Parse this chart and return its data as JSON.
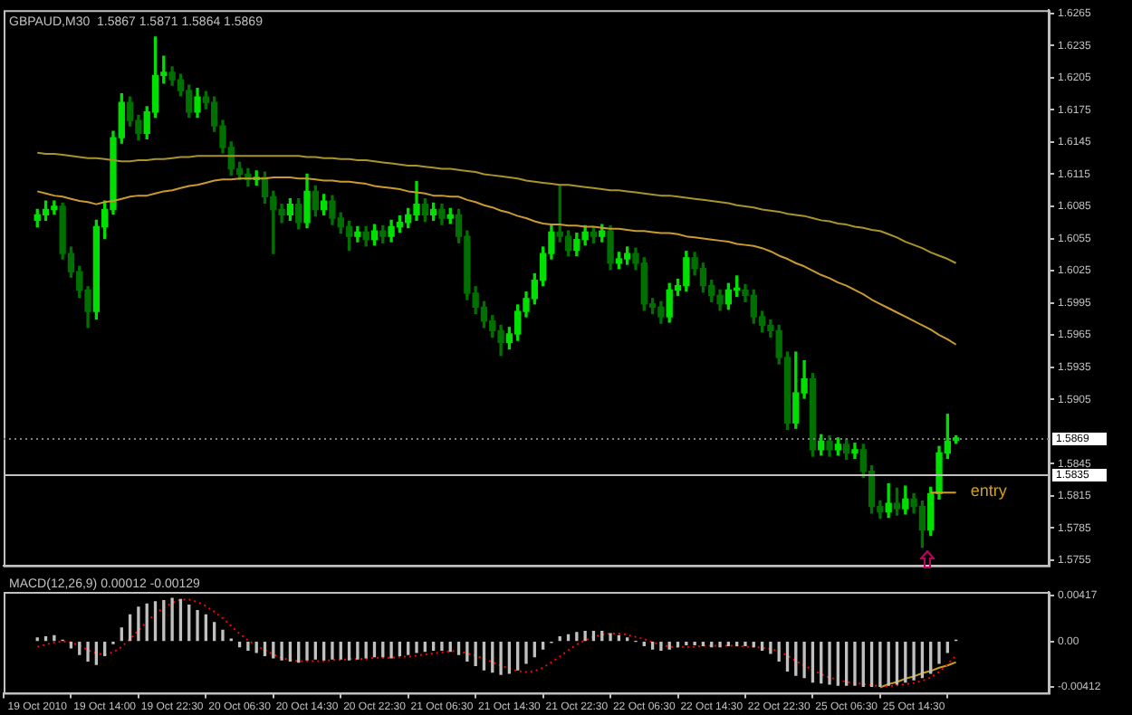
{
  "chart_data": [
    {
      "type": "candlestick",
      "title": "GBPAUD,M30  1.5867 1.5871 1.5864 1.5869",
      "tick_labels": "y",
      "colors": [
        "#00e000",
        "#00e000",
        "#00e000",
        "#007000",
        "#007000",
        "#007000",
        "#007000",
        "#00e000",
        "#00e000",
        "#00e000",
        "#00e000",
        "#007000",
        "#007000",
        "#00e000",
        "#00e000",
        "#00e000",
        "#007000",
        "#007000",
        "#007000",
        "#00e000",
        "#007000",
        "#007000",
        "#007000",
        "#007000",
        "#007000",
        "#007000",
        "#00e000",
        "#007000",
        "#007000",
        "#007000",
        "#00e000",
        "#007000",
        "#00e000",
        "#007000",
        "#00e000",
        "#007000",
        "#007000",
        "#007000",
        "#00e000",
        "#007000",
        "#00e000",
        "#007000",
        "#00e000",
        "#00e000",
        "#00e000",
        "#00e000",
        "#007000",
        "#00e000",
        "#007000",
        "#00e000",
        "#007000",
        "#007000",
        "#007000",
        "#007000",
        "#007000",
        "#007000",
        "#00e000",
        "#00e000",
        "#00e000",
        "#00e000",
        "#00e000",
        "#00e000",
        "#007000",
        "#007000",
        "#00e000",
        "#00e000",
        "#007000",
        "#00e000",
        "#007000",
        "#00e000",
        "#00e000",
        "#007000",
        "#007000",
        "#007000",
        "#007000",
        "#00e000",
        "#00e000",
        "#00e000",
        "#007000",
        "#007000",
        "#007000",
        "#007000",
        "#00e000",
        "#00e000",
        "#007000",
        "#007000",
        "#007000",
        "#007000",
        "#007000",
        "#007000",
        "#00e000",
        "#00e000",
        "#007000",
        "#00e000",
        "#007000",
        "#00e000",
        "#007000",
        "#00e000",
        "#007000",
        "#007000",
        "#007000",
        "#00e000",
        "#007000",
        "#00e000",
        "#007000",
        "#007000",
        "#00e000",
        "#00e000",
        "#00e000",
        "#00e000"
      ],
      "categories": [
        null,
        null,
        null,
        null,
        null,
        null,
        null,
        null,
        null,
        null,
        null,
        null,
        null,
        null,
        null,
        null,
        null,
        null,
        null,
        null,
        null,
        null,
        null,
        null,
        null,
        null,
        null,
        null,
        null,
        null,
        null,
        null,
        null,
        null,
        null,
        null,
        null,
        null,
        null,
        null,
        null,
        null,
        null,
        null,
        null,
        null,
        null,
        null,
        null,
        null,
        null,
        null,
        null,
        null,
        null,
        null,
        null,
        null,
        null,
        null,
        null,
        null,
        null,
        null,
        null,
        null,
        null,
        null,
        null,
        null,
        null,
        null,
        null,
        null,
        null,
        null,
        null,
        null,
        null,
        null,
        null,
        null,
        null,
        null,
        null,
        null,
        null,
        null,
        null,
        null,
        null,
        null,
        null,
        null,
        null,
        null,
        null,
        null,
        null,
        null,
        null,
        null,
        null,
        null,
        null,
        null,
        null,
        null,
        null,
        null
      ],
      "ohlc": [
        [
          1.6072,
          1.6082,
          1.6066,
          1.6077
        ],
        [
          1.6077,
          1.609,
          1.6072,
          1.6082
        ],
        [
          1.6082,
          1.609,
          1.6078,
          1.6085
        ],
        [
          1.6085,
          1.6088,
          1.6036,
          1.6041
        ],
        [
          1.6041,
          1.6047,
          1.6019,
          1.6024
        ],
        [
          1.6024,
          1.6029,
          1.6,
          1.6007
        ],
        [
          1.6007,
          1.601,
          1.5972,
          1.5987
        ],
        [
          1.5987,
          1.6072,
          1.598,
          1.6066
        ],
        [
          1.6066,
          1.609,
          1.6055,
          1.6082
        ],
        [
          1.6082,
          1.6155,
          1.6078,
          1.6149
        ],
        [
          1.6149,
          1.619,
          1.6144,
          1.6182
        ],
        [
          1.6182,
          1.6187,
          1.616,
          1.6165
        ],
        [
          1.6165,
          1.617,
          1.6147,
          1.6153
        ],
        [
          1.6153,
          1.6178,
          1.6148,
          1.6173
        ],
        [
          1.6173,
          1.6243,
          1.6168,
          1.6207
        ],
        [
          1.6207,
          1.6225,
          1.62,
          1.621
        ],
        [
          1.621,
          1.6215,
          1.6198,
          1.6203
        ],
        [
          1.6203,
          1.6208,
          1.6188,
          1.6193
        ],
        [
          1.6193,
          1.6198,
          1.6168,
          1.6173
        ],
        [
          1.6173,
          1.6195,
          1.6168,
          1.6187
        ],
        [
          1.6187,
          1.6192,
          1.6176,
          1.6182
        ],
        [
          1.6182,
          1.6187,
          1.6155,
          1.616
        ],
        [
          1.616,
          1.6165,
          1.6135,
          1.614
        ],
        [
          1.614,
          1.6145,
          1.6114,
          1.612
        ],
        [
          1.612,
          1.6126,
          1.611,
          1.6115
        ],
        [
          1.6115,
          1.612,
          1.6104,
          1.611
        ],
        [
          1.611,
          1.6118,
          1.6105,
          1.6112
        ],
        [
          1.6112,
          1.6117,
          1.6088,
          1.6094
        ],
        [
          1.6094,
          1.6099,
          1.6041,
          1.6082
        ],
        [
          1.6082,
          1.6087,
          1.607,
          1.6077
        ],
        [
          1.6077,
          1.6092,
          1.6072,
          1.6087
        ],
        [
          1.6087,
          1.6092,
          1.6064,
          1.607
        ],
        [
          1.607,
          1.6115,
          1.6065,
          1.6099
        ],
        [
          1.6099,
          1.6104,
          1.6076,
          1.6082
        ],
        [
          1.6082,
          1.6096,
          1.6077,
          1.609
        ],
        [
          1.609,
          1.6095,
          1.6068,
          1.6074
        ],
        [
          1.6074,
          1.6079,
          1.606,
          1.6066
        ],
        [
          1.6066,
          1.6071,
          1.6044,
          1.6057
        ],
        [
          1.6057,
          1.6066,
          1.6052,
          1.6061
        ],
        [
          1.6061,
          1.6066,
          1.6048,
          1.6054
        ],
        [
          1.6054,
          1.6068,
          1.6049,
          1.6062
        ],
        [
          1.6062,
          1.6067,
          1.6051,
          1.6057
        ],
        [
          1.6057,
          1.6072,
          1.6052,
          1.6066
        ],
        [
          1.6066,
          1.6076,
          1.6061,
          1.607
        ],
        [
          1.607,
          1.6083,
          1.6065,
          1.6077
        ],
        [
          1.6077,
          1.6108,
          1.6072,
          1.6087
        ],
        [
          1.6087,
          1.6092,
          1.6071,
          1.6077
        ],
        [
          1.6077,
          1.6088,
          1.6072,
          1.6082
        ],
        [
          1.6082,
          1.6087,
          1.6068,
          1.6074
        ],
        [
          1.6074,
          1.6083,
          1.6069,
          1.6077
        ],
        [
          1.6077,
          1.6082,
          1.6051,
          1.6057
        ],
        [
          1.6057,
          1.6062,
          1.5998,
          1.6004
        ],
        [
          1.6004,
          1.601,
          1.5985,
          1.5991
        ],
        [
          1.5991,
          1.5996,
          1.5972,
          1.5978
        ],
        [
          1.5978,
          1.5983,
          1.5963,
          1.5969
        ],
        [
          1.5969,
          1.5974,
          1.5946,
          1.5958
        ],
        [
          1.5958,
          1.5972,
          1.5952,
          1.5966
        ],
        [
          1.5966,
          1.5993,
          1.596,
          1.5987
        ],
        [
          1.5987,
          1.6005,
          1.5982,
          1.5999
        ],
        [
          1.5999,
          1.6022,
          1.5994,
          1.6016
        ],
        [
          1.6016,
          1.6047,
          1.6011,
          1.6041
        ],
        [
          1.6041,
          1.6068,
          1.6036,
          1.6061
        ],
        [
          1.6061,
          1.6104,
          1.6052,
          1.6057
        ],
        [
          1.6057,
          1.6062,
          1.6039,
          1.6044
        ],
        [
          1.6044,
          1.606,
          1.6039,
          1.6054
        ],
        [
          1.6054,
          1.6067,
          1.6049,
          1.6061
        ],
        [
          1.6061,
          1.6066,
          1.6051,
          1.6057
        ],
        [
          1.6057,
          1.6068,
          1.6052,
          1.6062
        ],
        [
          1.6062,
          1.6067,
          1.6026,
          1.6032
        ],
        [
          1.6032,
          1.6042,
          1.6027,
          1.6036
        ],
        [
          1.6036,
          1.6047,
          1.6031,
          1.6041
        ],
        [
          1.6041,
          1.6046,
          1.6026,
          1.6032
        ],
        [
          1.6032,
          1.6037,
          1.5988,
          1.5994
        ],
        [
          1.5994,
          1.5999,
          1.5985,
          1.5991
        ],
        [
          1.5991,
          1.5996,
          1.5976,
          1.5982
        ],
        [
          1.5982,
          1.6013,
          1.5977,
          1.6007
        ],
        [
          1.6007,
          1.6017,
          1.6002,
          1.6011
        ],
        [
          1.6011,
          1.6043,
          1.6006,
          1.6037
        ],
        [
          1.6037,
          1.6042,
          1.6021,
          1.6027
        ],
        [
          1.6027,
          1.6032,
          1.6005,
          1.6011
        ],
        [
          1.6011,
          1.6016,
          1.5996,
          1.6002
        ],
        [
          1.6002,
          1.6007,
          1.5988,
          1.5994
        ],
        [
          1.5994,
          1.6013,
          1.5989,
          1.6007
        ],
        [
          1.6007,
          1.602,
          1.6001,
          1.6007
        ],
        [
          1.6007,
          1.6012,
          1.5996,
          1.6002
        ],
        [
          1.6002,
          1.6007,
          1.5976,
          1.5982
        ],
        [
          1.5982,
          1.5987,
          1.5968,
          1.5974
        ],
        [
          1.5974,
          1.5979,
          1.5963,
          1.5969
        ],
        [
          1.5969,
          1.5974,
          1.5938,
          1.5944
        ],
        [
          1.5944,
          1.5949,
          1.5877,
          1.5883
        ],
        [
          1.5883,
          1.5949,
          1.5878,
          1.5911
        ],
        [
          1.5911,
          1.5941,
          1.5906,
          1.5924
        ],
        [
          1.5924,
          1.5929,
          1.5852,
          1.5858
        ],
        [
          1.5858,
          1.5872,
          1.5853,
          1.5866
        ],
        [
          1.5866,
          1.5871,
          1.5852,
          1.5858
        ],
        [
          1.5858,
          1.5869,
          1.5853,
          1.5863
        ],
        [
          1.5863,
          1.5868,
          1.5849,
          1.5855
        ],
        [
          1.5855,
          1.5864,
          1.585,
          1.5858
        ],
        [
          1.5858,
          1.5863,
          1.5832,
          1.5838
        ],
        [
          1.5838,
          1.5843,
          1.5799,
          1.5805
        ],
        [
          1.5805,
          1.581,
          1.5794,
          1.58
        ],
        [
          1.58,
          1.5826,
          1.5795,
          1.5808
        ],
        [
          1.5808,
          1.5822,
          1.5797,
          1.5803
        ],
        [
          1.5803,
          1.5824,
          1.5798,
          1.5812
        ],
        [
          1.5812,
          1.5817,
          1.5799,
          1.5805
        ],
        [
          1.5805,
          1.581,
          1.5767,
          1.5783
        ],
        [
          1.5783,
          1.5823,
          1.5778,
          1.5817
        ],
        [
          1.5817,
          1.5861,
          1.5812,
          1.5855
        ],
        [
          1.5855,
          1.5891,
          1.585,
          1.5866
        ],
        [
          1.5867,
          1.5871,
          1.5864,
          1.5869
        ]
      ],
      "series": [
        {
          "type": "line",
          "color": "#a89428",
          "values": [
            1.6135,
            1.6134,
            1.6134,
            1.6133,
            1.6132,
            1.6131,
            1.613,
            1.613,
            1.6129,
            1.6128,
            1.6127,
            1.6127,
            1.6128,
            1.6128,
            1.6129,
            1.6129,
            1.613,
            1.6131,
            1.6131,
            1.6132,
            1.6132,
            1.6132,
            1.6132,
            1.6132,
            1.6132,
            1.6132,
            1.6132,
            1.6132,
            1.6132,
            1.6132,
            1.6132,
            1.6132,
            1.6131,
            1.6131,
            1.613,
            1.613,
            1.6129,
            1.6129,
            1.6128,
            1.6128,
            1.6127,
            1.6126,
            1.6125,
            1.6124,
            1.6123,
            1.6123,
            1.6122,
            1.6121,
            1.612,
            1.612,
            1.6119,
            1.6118,
            1.6117,
            1.6115,
            1.6114,
            1.6113,
            1.6112,
            1.6111,
            1.6109,
            1.6108,
            1.6107,
            1.6106,
            1.6105,
            1.6105,
            1.6104,
            1.6103,
            1.6102,
            1.6101,
            1.61,
            1.61,
            1.6099,
            1.6098,
            1.6097,
            1.6096,
            1.6095,
            1.6095,
            1.6094,
            1.6093,
            1.6092,
            1.6091,
            1.609,
            1.6089,
            1.6088,
            1.6086,
            1.6085,
            1.6084,
            1.6082,
            1.6081,
            1.608,
            1.6078,
            1.6077,
            1.6076,
            1.6074,
            1.6072,
            1.6071,
            1.6069,
            1.6068,
            1.6066,
            1.6065,
            1.6063,
            1.6062,
            1.6059,
            1.6056,
            1.6052,
            1.6049,
            1.6046,
            1.6042,
            1.6039,
            1.6036,
            1.6032
          ]
        },
        {
          "type": "line",
          "color": "#d4a017",
          "values": [
            null,
            null,
            null,
            null,
            null,
            null,
            null,
            null,
            null,
            null,
            null,
            null,
            null,
            null,
            null,
            null,
            null,
            null,
            null,
            null,
            null,
            null,
            null,
            null,
            null,
            null,
            null,
            null,
            null,
            null,
            null,
            null,
            null,
            null,
            null,
            null,
            null,
            null,
            null,
            null,
            null,
            null,
            null,
            null,
            null,
            null,
            null,
            null,
            null,
            null,
            null,
            null,
            null,
            null,
            null,
            null,
            null,
            null,
            null,
            null,
            null,
            null,
            null,
            null,
            null,
            null,
            null,
            null,
            null,
            null,
            null,
            null,
            null,
            null,
            null,
            null,
            null,
            null,
            null,
            null,
            null,
            null,
            null,
            null,
            null,
            null,
            null,
            null,
            null,
            null,
            null,
            null,
            null,
            null,
            null,
            null,
            null,
            null,
            null,
            null,
            null,
            null,
            null,
            null,
            null,
            null,
            1.5818,
            1.5818,
            1.5818,
            1.5818
          ]
        },
        {
          "type": "line",
          "color": "#c89a30",
          "values": [
            1.6099,
            1.6097,
            1.6095,
            1.6094,
            1.6092,
            1.609,
            1.6089,
            1.6087,
            1.6089,
            1.609,
            1.6092,
            1.6094,
            1.6095,
            1.6095,
            1.6097,
            1.6099,
            1.61,
            1.6102,
            1.6104,
            1.6105,
            1.6107,
            1.6109,
            1.611,
            1.611,
            1.6111,
            1.6111,
            1.6111,
            1.6111,
            1.6112,
            1.6112,
            1.6112,
            1.6111,
            1.6111,
            1.611,
            1.6109,
            1.6109,
            1.6108,
            1.6108,
            1.6107,
            1.6106,
            1.6104,
            1.6103,
            1.6102,
            1.6101,
            1.6099,
            1.6098,
            1.6097,
            1.6095,
            1.6095,
            1.6094,
            1.6094,
            1.6091,
            1.6089,
            1.6086,
            1.6084,
            1.6081,
            1.6079,
            1.6076,
            1.6074,
            1.6071,
            1.6069,
            1.6068,
            1.6068,
            1.6067,
            1.6067,
            1.6066,
            1.6066,
            1.6065,
            1.6064,
            1.6064,
            1.6063,
            1.6062,
            1.6062,
            1.6061,
            1.606,
            1.606,
            1.6059,
            1.6057,
            1.6056,
            1.6055,
            1.6054,
            1.6053,
            1.6052,
            1.605,
            1.6049,
            1.6048,
            1.6046,
            1.6043,
            1.6039,
            1.6036,
            1.6032,
            1.6029,
            1.6025,
            1.6021,
            1.6018,
            1.6014,
            1.6011,
            1.6007,
            1.6003,
            1.5998,
            1.5994,
            1.599,
            1.5986,
            1.5982,
            1.5978,
            1.5974,
            1.597,
            1.5965,
            1.5961,
            1.5956
          ]
        }
      ],
      "ylim": [
        1.575,
        1.6268
      ],
      "yticks": [
        1.6265,
        1.6235,
        1.6205,
        1.6175,
        1.6145,
        1.6115,
        1.6085,
        1.6055,
        1.6025,
        1.5995,
        1.5965,
        1.5935,
        1.5905,
        1.5845,
        1.5815,
        1.5785,
        1.5755
      ],
      "ref_lines": [
        {
          "axis": "y",
          "value": 1.5869,
          "label": "1.5869",
          "color": "#808080",
          "line_style": "dotted"
        },
        {
          "axis": "y",
          "value": 1.5835,
          "label": "1.5835",
          "color": "#c0c0c0",
          "line_style": "solid"
        }
      ],
      "annotations": [
        "entry"
      ]
    },
    {
      "type": "bar",
      "title": "MACD(12,26,9) 0.00012 -0.00129",
      "categories": [
        "19 Oct 2010",
        null,
        null,
        null,
        null,
        null,
        null,
        null,
        "19 Oct 14:00",
        null,
        null,
        null,
        null,
        null,
        null,
        null,
        "19 Oct 22:30",
        null,
        null,
        null,
        null,
        null,
        null,
        null,
        "20 Oct 06:30",
        null,
        null,
        null,
        null,
        null,
        null,
        null,
        "20 Oct 14:30",
        null,
        null,
        null,
        null,
        null,
        null,
        null,
        "20 Oct 22:30",
        null,
        null,
        null,
        null,
        null,
        null,
        null,
        "21 Oct 06:30",
        null,
        null,
        null,
        null,
        null,
        null,
        null,
        "21 Oct 14:30",
        null,
        null,
        null,
        null,
        null,
        null,
        null,
        "21 Oct 22:30",
        null,
        null,
        null,
        null,
        null,
        null,
        null,
        "22 Oct 06:30",
        null,
        null,
        null,
        null,
        null,
        null,
        null,
        "22 Oct 14:30",
        null,
        null,
        null,
        null,
        null,
        null,
        null,
        "22 Oct 22:30",
        null,
        null,
        null,
        null,
        null,
        null,
        null,
        "25 Oct 06:30",
        null,
        null,
        null,
        null,
        null,
        null,
        null,
        "25 Oct 14:30",
        null,
        null,
        null,
        null,
        null
      ],
      "series": [
        {
          "type": "bar",
          "color": "#c0c0c0",
          "values": [
            0.0003,
            0.0004,
            0.0005,
            0.0001,
            -0.0006,
            -0.0012,
            -0.0018,
            -0.0021,
            -0.0013,
            -0.0002,
            0.0012,
            0.0024,
            0.0031,
            0.0034,
            0.0036,
            0.0037,
            0.0039,
            0.0038,
            0.0033,
            0.0028,
            0.0024,
            0.0017,
            0.001,
            0.0002,
            -0.0005,
            -0.0008,
            -0.001,
            -0.0013,
            -0.0015,
            -0.0017,
            -0.0018,
            -0.0019,
            -0.0017,
            -0.0016,
            -0.0017,
            -0.0016,
            -0.0016,
            -0.0017,
            -0.0016,
            -0.0015,
            -0.0014,
            -0.0014,
            -0.0015,
            -0.0013,
            -0.0012,
            -0.001,
            -0.0009,
            -0.0008,
            -0.0008,
            -0.0009,
            -0.0012,
            -0.0018,
            -0.0022,
            -0.0026,
            -0.0028,
            -0.003,
            -0.0029,
            -0.0026,
            -0.002,
            -0.0014,
            -0.0007,
            -0.0001,
            0.0004,
            0.0006,
            0.0008,
            0.0009,
            0.0009,
            0.0009,
            0.0007,
            0.0005,
            0.0003,
            0,
            -0.0004,
            -0.0007,
            -0.0008,
            -0.0007,
            -0.0005,
            -0.0003,
            -0.0003,
            -0.0004,
            -0.0005,
            -0.0005,
            -0.0004,
            -0.0004,
            -0.0004,
            -0.0005,
            -0.0008,
            -0.0011,
            -0.0018,
            -0.0027,
            -0.0031,
            -0.0033,
            -0.0037,
            -0.0038,
            -0.0039,
            -0.004,
            -0.004,
            -0.004,
            -0.0041,
            -0.0041,
            -0.0041,
            -0.004,
            -0.0039,
            -0.0037,
            -0.0035,
            -0.0033,
            -0.0029,
            -0.002,
            -0.001,
            0.0001
          ]
        },
        {
          "type": "line",
          "color": "#ff0000",
          "line_style": "dotted",
          "values": [
            -0.0005,
            -0.0003,
            -0.0001,
            0,
            -0.0001,
            -0.0004,
            -0.0008,
            -0.0011,
            -0.0012,
            -0.001,
            -0.0005,
            0.0002,
            0.001,
            0.0018,
            0.0025,
            0.0031,
            0.0035,
            0.0038,
            0.0038,
            0.0036,
            0.0032,
            0.0027,
            0.0021,
            0.0014,
            0.0007,
            0.0001,
            -0.0004,
            -0.0008,
            -0.0012,
            -0.0015,
            -0.0017,
            -0.0018,
            -0.0018,
            -0.0018,
            -0.0018,
            -0.0017,
            -0.0017,
            -0.0016,
            -0.0016,
            -0.0016,
            -0.0015,
            -0.0015,
            -0.0015,
            -0.0014,
            -0.0014,
            -0.0013,
            -0.0012,
            -0.0011,
            -0.001,
            -0.0009,
            -0.0009,
            -0.0011,
            -0.0013,
            -0.0016,
            -0.0019,
            -0.0022,
            -0.0025,
            -0.0027,
            -0.0028,
            -0.0027,
            -0.0024,
            -0.0019,
            -0.0014,
            -0.0008,
            -0.0003,
            0.0001,
            0.0004,
            0.0006,
            0.0007,
            0.0007,
            0.0006,
            0.0004,
            0.0002,
            -0.0001,
            -0.0003,
            -0.0005,
            -0.0005,
            -0.0005,
            -0.0005,
            -0.0004,
            -0.0004,
            -0.0004,
            -0.0004,
            -0.0004,
            -0.0005,
            -0.0005,
            -0.0006,
            -0.0007,
            -0.0009,
            -0.0013,
            -0.0018,
            -0.0022,
            -0.0026,
            -0.003,
            -0.0033,
            -0.0035,
            -0.0037,
            -0.0038,
            -0.0039,
            -0.004,
            -0.0041,
            -0.0041,
            -0.004,
            -0.0039,
            -0.0038,
            -0.0036,
            -0.0033,
            -0.0028,
            -0.0021,
            -0.0013
          ]
        },
        {
          "type": "line",
          "color": "#c8a020",
          "line_style": "solid",
          "values": [
            null,
            null,
            null,
            null,
            null,
            null,
            null,
            null,
            null,
            null,
            null,
            null,
            null,
            null,
            null,
            null,
            null,
            null,
            null,
            null,
            null,
            null,
            null,
            null,
            null,
            null,
            null,
            null,
            null,
            null,
            null,
            null,
            null,
            null,
            null,
            null,
            null,
            null,
            null,
            null,
            null,
            null,
            null,
            null,
            null,
            null,
            null,
            null,
            null,
            null,
            null,
            null,
            null,
            null,
            null,
            null,
            null,
            null,
            null,
            null,
            null,
            null,
            null,
            null,
            null,
            null,
            null,
            null,
            null,
            null,
            null,
            null,
            null,
            null,
            null,
            null,
            null,
            null,
            null,
            null,
            null,
            null,
            null,
            null,
            null,
            null,
            null,
            null,
            null,
            null,
            null,
            null,
            null,
            null,
            null,
            null,
            null,
            null,
            null,
            null,
            -0.0042,
            -0.0039,
            -0.0037,
            -0.0034,
            -0.0032,
            -0.0029,
            -0.0027,
            -0.0024,
            -0.0022,
            -0.0019
          ]
        }
      ],
      "ylim": [
        -0.0047,
        0.0045
      ],
      "yticks": [
        0.00417,
        {
          "value": 0,
          "label": "0.00"
        },
        -0.00412
      ]
    }
  ]
}
